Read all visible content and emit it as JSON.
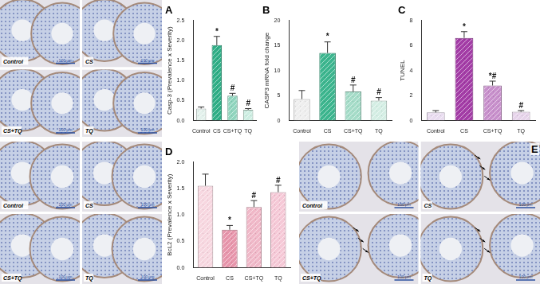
{
  "chart_data": [
    {
      "type": "bar",
      "title": "A",
      "y_label": "Casp-3 (Prevalence x Severity)",
      "categories": [
        "Control",
        "CS",
        "CS+TQ",
        "TQ"
      ],
      "values": [
        0.3,
        1.88,
        0.62,
        0.27
      ],
      "errors": [
        0.04,
        0.22,
        0.06,
        0.03
      ],
      "annotations": [
        null,
        "*",
        "#",
        "#"
      ],
      "colors": [
        "#e3f1ec",
        "#2fae86",
        "#8fd4bd",
        "#cdeee2"
      ],
      "ylim": [
        0,
        2.5
      ],
      "yticks": [
        {
          "value": 0,
          "label": "0.0"
        },
        {
          "value": 0.5,
          "label": "0.5"
        },
        {
          "value": 1,
          "label": "1.0"
        },
        {
          "value": 1.5,
          "label": "1.5"
        },
        {
          "value": 2,
          "label": "2.0"
        },
        {
          "value": 2.5,
          "label": "2.5"
        }
      ],
      "grid": false
    },
    {
      "type": "bar",
      "title": "B",
      "y_label": "CASP3 mRNA fold change",
      "categories": [
        "Control",
        "CS",
        "CS+TQ",
        "TQ"
      ],
      "values": [
        4.3,
        13.5,
        5.8,
        4.0
      ],
      "errors": [
        1.7,
        2.2,
        1.3,
        0.6
      ],
      "annotations": [
        null,
        "*",
        "#",
        "#"
      ],
      "colors": [
        "#eeeeee",
        "#3cb58e",
        "#a5dcc8",
        "#d4eee4"
      ],
      "ylim": [
        0,
        20
      ],
      "yticks": [
        0,
        5,
        10,
        15,
        20
      ],
      "grid": false
    },
    {
      "type": "bar",
      "title": "C",
      "y_label": "TUNEL",
      "categories": [
        "Control",
        "CS",
        "CS+TQ",
        "TQ"
      ],
      "values": [
        0.65,
        6.6,
        2.8,
        0.7
      ],
      "errors": [
        0.15,
        0.5,
        0.35,
        0.1
      ],
      "annotations": [
        null,
        "*",
        "*#",
        "#"
      ],
      "colors": [
        "#e9dcf0",
        "#a33ca6",
        "#c78fcb",
        "#e6d3ea"
      ],
      "ylim": [
        0,
        8
      ],
      "yticks": [
        0,
        2,
        4,
        6,
        8
      ],
      "grid": false
    },
    {
      "type": "bar",
      "title": "D",
      "y_label": "BcL2 (Prevalence x Severity)",
      "categories": [
        "Control",
        "CS",
        "CS+TQ",
        "TQ"
      ],
      "values": [
        1.55,
        0.72,
        1.15,
        1.43
      ],
      "errors": [
        0.22,
        0.08,
        0.12,
        0.13
      ],
      "annotations": [
        null,
        "*",
        "#",
        "#"
      ],
      "colors": [
        "#f7d7e0",
        "#e795ab",
        "#f0b8c8",
        "#f5c8d6"
      ],
      "ylim": [
        0,
        2
      ],
      "yticks": [
        {
          "value": 0,
          "label": "0.0"
        },
        {
          "value": 0.5,
          "label": "0.5"
        },
        {
          "value": 1,
          "label": "1.0"
        },
        {
          "value": 1.5,
          "label": "1.5"
        },
        {
          "value": 2,
          "label": "2.0"
        }
      ],
      "grid": false
    }
  ],
  "image_panels": [
    {
      "labels": [
        "Control",
        "CS",
        "CS+TQ",
        "TQ"
      ],
      "scale_bar": "100 μm"
    },
    {
      "labels": [
        "Control",
        "CS",
        "CS+TQ",
        "TQ"
      ],
      "scale_bar": "100 μm"
    },
    {
      "letter": "E",
      "labels": [
        "Control",
        "CS",
        "CS+TQ",
        "TQ"
      ],
      "scale_bar": "100 μm"
    }
  ]
}
